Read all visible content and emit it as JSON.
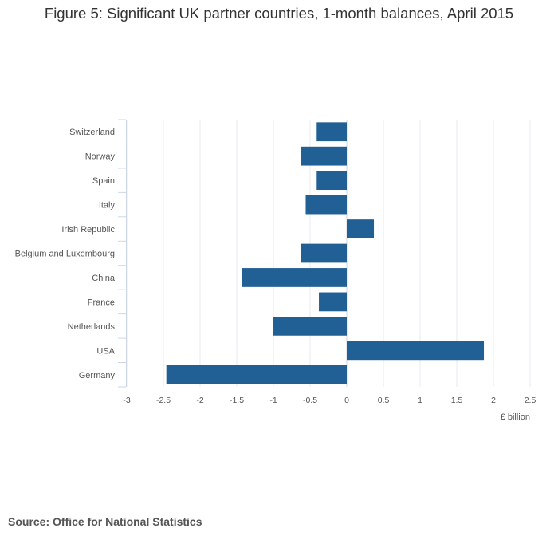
{
  "page": {
    "title": "Figure 5: Significant UK partner countries, 1-month balances, April 2015",
    "source": "Source: Office for National Statistics"
  },
  "chart_data": {
    "type": "bar",
    "orientation": "horizontal",
    "categories": [
      "Switzerland",
      "Norway",
      "Spain",
      "Italy",
      "Irish Republic",
      "Belgium and Luxembourg",
      "China",
      "France",
      "Netherlands",
      "USA",
      "Germany"
    ],
    "values": [
      -0.41,
      -0.62,
      -0.41,
      -0.56,
      0.37,
      -0.63,
      -1.43,
      -0.38,
      -1.0,
      1.87,
      -2.46
    ],
    "xlabel": "£ billion",
    "ylabel": "",
    "xlim": [
      -3,
      2.5
    ],
    "xticks": [
      -3,
      -2.5,
      -2,
      -1.5,
      -1,
      -0.5,
      0,
      0.5,
      1,
      1.5,
      2,
      2.5
    ],
    "xtick_labels": [
      "-3",
      "-2.5",
      "-2",
      "-1.5",
      "-1",
      "-0.5",
      "0",
      "0.5",
      "1",
      "1.5",
      "2",
      "2.5"
    ],
    "grid": true,
    "bar_color": "#206095",
    "grid_color": "#e6eaf0"
  }
}
